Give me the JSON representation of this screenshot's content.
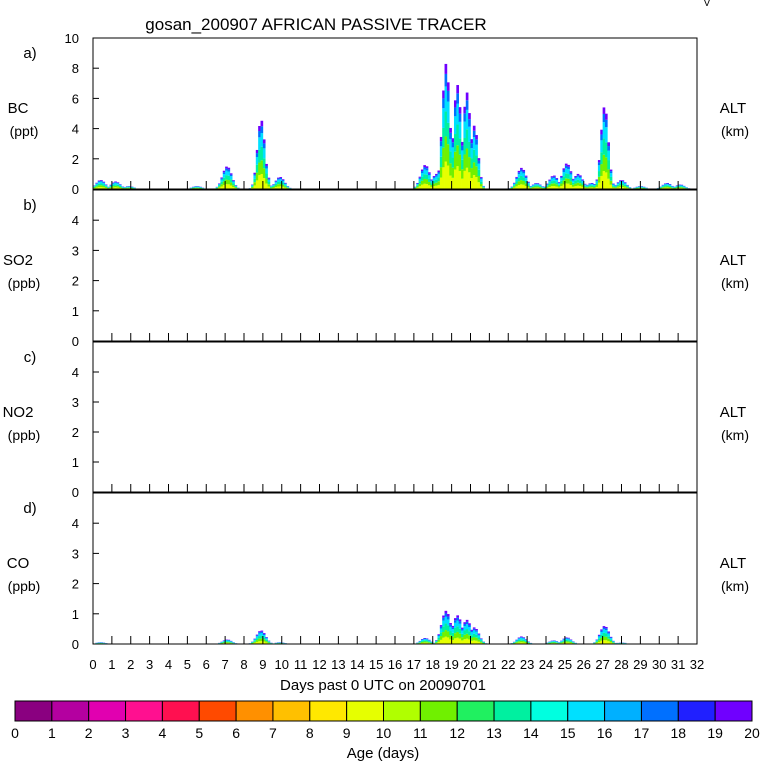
{
  "title": "gosan_200907 AFRICAN PASSIVE TRACER",
  "corner_mark": "V",
  "panels": [
    {
      "label": "a)",
      "species": "BC",
      "unit": "(ppt)",
      "right_label": "ALT",
      "right_unit": "(km)",
      "yticks": [
        "0",
        "2",
        "4",
        "6",
        "8",
        "10"
      ]
    },
    {
      "label": "b)",
      "species": "SO2",
      "unit": "(ppb)",
      "right_label": "ALT",
      "right_unit": "(km)",
      "yticks": [
        "0",
        "1",
        "2",
        "3",
        "4"
      ]
    },
    {
      "label": "c)",
      "species": "NO2",
      "unit": "(ppb)",
      "right_label": "ALT",
      "right_unit": "(km)",
      "yticks": [
        "0",
        "1",
        "2",
        "3",
        "4"
      ]
    },
    {
      "label": "d)",
      "species": "CO",
      "unit": "(ppb)",
      "right_label": "ALT",
      "right_unit": "(km)",
      "yticks": [
        "0",
        "1",
        "2",
        "3",
        "4"
      ]
    }
  ],
  "xaxis": {
    "label": "Days past 0 UTC on 20090701",
    "ticks": [
      "0",
      "1",
      "2",
      "3",
      "4",
      "5",
      "6",
      "7",
      "8",
      "9",
      "10",
      "11",
      "12",
      "13",
      "14",
      "15",
      "16",
      "17",
      "18",
      "19",
      "20",
      "21",
      "22",
      "23",
      "24",
      "25",
      "26",
      "27",
      "28",
      "29",
      "30",
      "31",
      "32"
    ]
  },
  "colorbar": {
    "label": "Age (days)",
    "ticks": [
      "0",
      "1",
      "2",
      "3",
      "4",
      "5",
      "6",
      "7",
      "8",
      "9",
      "10",
      "11",
      "12",
      "13",
      "14",
      "15",
      "16",
      "17",
      "18",
      "19",
      "20"
    ],
    "colors": [
      "#8a0080",
      "#b400a0",
      "#e100b0",
      "#ff1090",
      "#ff1050",
      "#ff4a00",
      "#ff9000",
      "#ffc000",
      "#ffe800",
      "#e6ff00",
      "#b0ff00",
      "#70f000",
      "#20f060",
      "#00f0a0",
      "#00ffe0",
      "#00e0ff",
      "#00b0ff",
      "#0070ff",
      "#2020ff",
      "#7000ff"
    ]
  },
  "chart_data": {
    "type": "area",
    "title": "gosan_200907 AFRICAN PASSIVE TRACER",
    "xlabel": "Days past 0 UTC on 20090701",
    "xlim": [
      0,
      32
    ],
    "colorscale": "Age (days), 0-20",
    "series": [
      {
        "name": "BC",
        "ylabel": "BC (ppt)",
        "ylim": [
          0,
          10
        ],
        "peaks": [
          {
            "x": 0.4,
            "y": 0.6
          },
          {
            "x": 1.2,
            "y": 0.5
          },
          {
            "x": 1.9,
            "y": 0.2
          },
          {
            "x": 5.5,
            "y": 0.2
          },
          {
            "x": 7.1,
            "y": 1.5
          },
          {
            "x": 8.9,
            "y": 4.6
          },
          {
            "x": 9.0,
            "y": 2.6
          },
          {
            "x": 9.9,
            "y": 0.8
          },
          {
            "x": 17.6,
            "y": 1.6
          },
          {
            "x": 18.2,
            "y": 1.0
          },
          {
            "x": 18.7,
            "y": 8.3
          },
          {
            "x": 19.3,
            "y": 6.9
          },
          {
            "x": 19.8,
            "y": 6.4
          },
          {
            "x": 20.2,
            "y": 4.2
          },
          {
            "x": 22.7,
            "y": 1.4
          },
          {
            "x": 23.5,
            "y": 0.4
          },
          {
            "x": 24.4,
            "y": 0.9
          },
          {
            "x": 25.1,
            "y": 1.7
          },
          {
            "x": 25.7,
            "y": 1.0
          },
          {
            "x": 26.4,
            "y": 0.4
          },
          {
            "x": 27.1,
            "y": 5.5
          },
          {
            "x": 28.0,
            "y": 0.6
          },
          {
            "x": 29.0,
            "y": 0.2
          },
          {
            "x": 30.4,
            "y": 0.4
          },
          {
            "x": 31.1,
            "y": 0.3
          }
        ]
      },
      {
        "name": "SO2",
        "ylabel": "SO2 (ppb)",
        "ylim": [
          0,
          5
        ],
        "peaks": []
      },
      {
        "name": "NO2",
        "ylabel": "NO2 (ppb)",
        "ylim": [
          0,
          5
        ],
        "peaks": []
      },
      {
        "name": "CO",
        "ylabel": "CO (ppb)",
        "ylim": [
          0,
          5
        ],
        "peaks": [
          {
            "x": 0.4,
            "y": 0.06
          },
          {
            "x": 7.1,
            "y": 0.15
          },
          {
            "x": 8.9,
            "y": 0.45
          },
          {
            "x": 9.9,
            "y": 0.06
          },
          {
            "x": 17.6,
            "y": 0.2
          },
          {
            "x": 18.7,
            "y": 1.1
          },
          {
            "x": 19.3,
            "y": 0.95
          },
          {
            "x": 19.8,
            "y": 0.8
          },
          {
            "x": 20.2,
            "y": 0.55
          },
          {
            "x": 22.7,
            "y": 0.25
          },
          {
            "x": 24.4,
            "y": 0.12
          },
          {
            "x": 25.1,
            "y": 0.22
          },
          {
            "x": 27.1,
            "y": 0.6
          },
          {
            "x": 28.0,
            "y": 0.05
          }
        ]
      }
    ]
  }
}
